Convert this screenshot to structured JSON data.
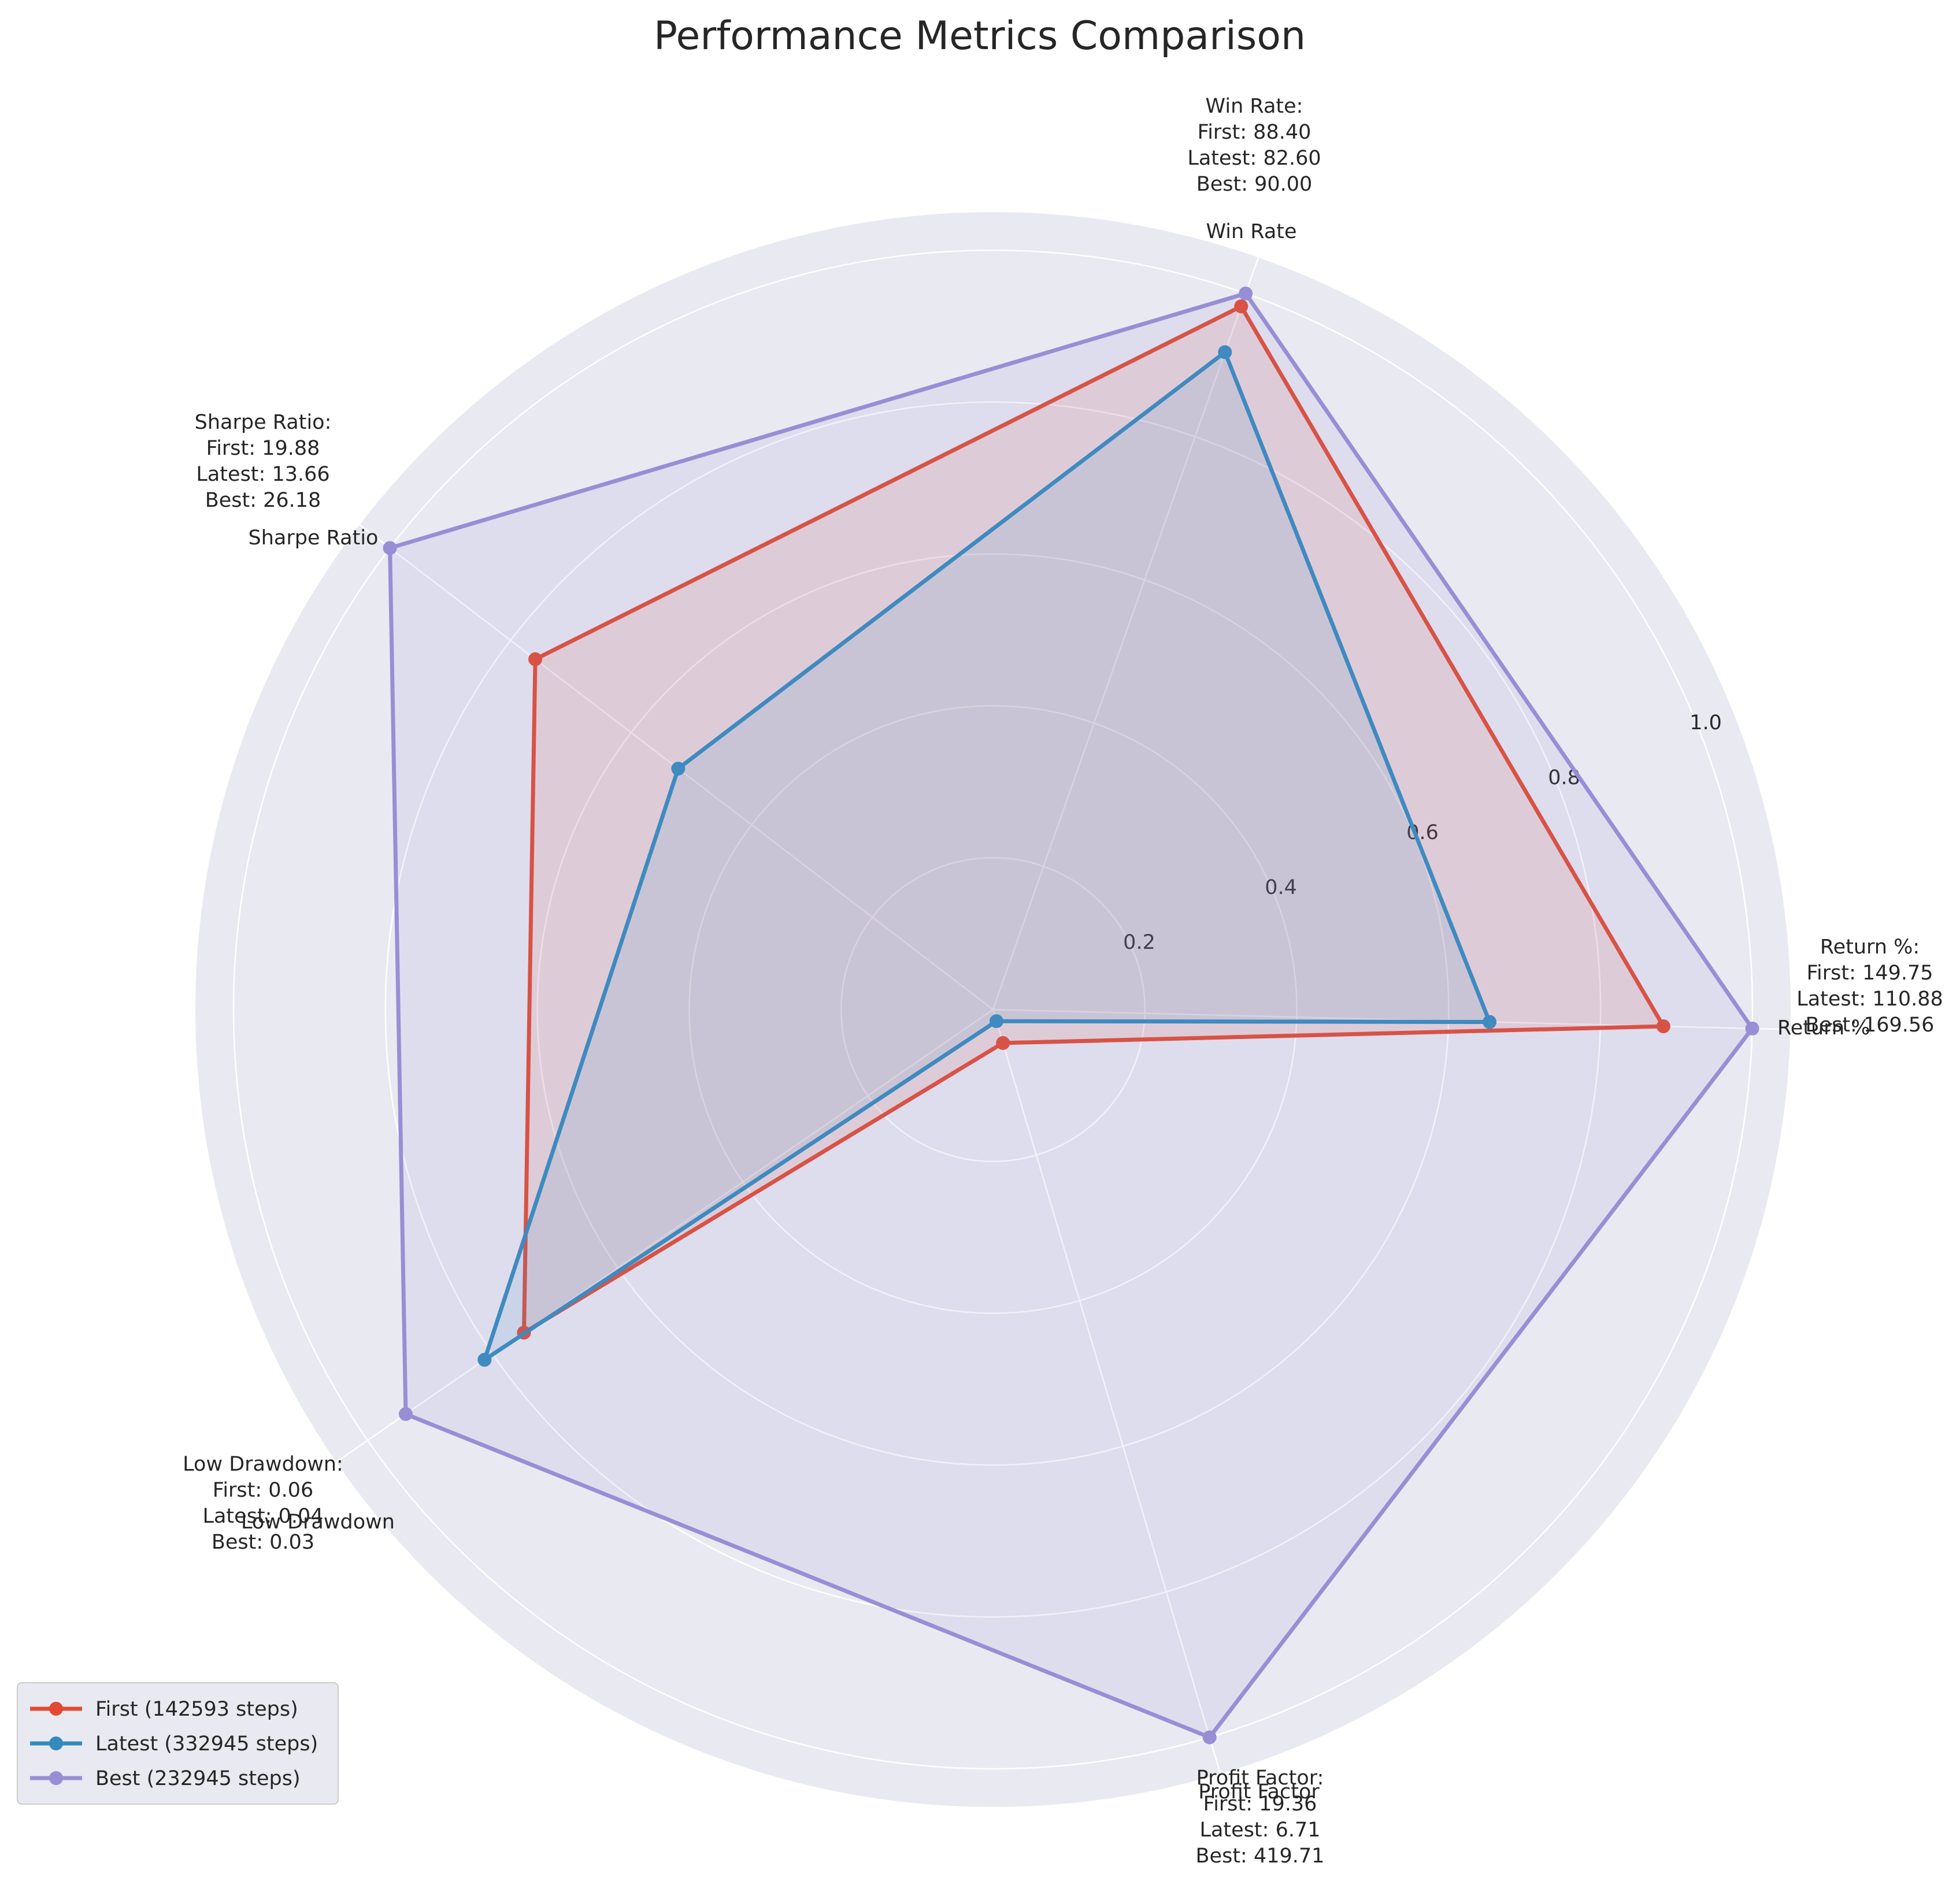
{
  "chart_data": {
    "type": "radar",
    "title": "Performance Metrics Comparison",
    "axes": [
      "Return %",
      "Win Rate",
      "Sharpe Ratio",
      "Low Drawdown",
      "Profit Factor"
    ],
    "rlim": [
      0,
      1.0
    ],
    "rticks": [
      "0.2",
      "0.4",
      "0.6",
      "0.8",
      "1.0"
    ],
    "grid": true,
    "legend_position": "lower-left",
    "series": [
      {
        "name": "First (142593 steps)",
        "color": "#E24A33",
        "values": [
          0.883,
          0.982,
          0.759,
          0.75,
          0.046
        ]
      },
      {
        "name": "Latest (332945 steps)",
        "color": "#348ABD",
        "values": [
          0.654,
          0.918,
          0.522,
          0.813,
          0.016
        ]
      },
      {
        "name": "Best (232945 steps)",
        "color": "#988ED5",
        "values": [
          1.0,
          1.0,
          1.0,
          0.939,
          1.0
        ]
      }
    ],
    "annotations": [
      {
        "axis": "Return %",
        "lines": [
          "Return %:",
          "First: 149.75",
          "Latest: 110.88",
          "Best: 169.56"
        ]
      },
      {
        "axis": "Win Rate",
        "lines": [
          "Win Rate:",
          "First: 88.40",
          "Latest: 82.60",
          "Best: 90.00"
        ]
      },
      {
        "axis": "Sharpe Ratio",
        "lines": [
          "Sharpe Ratio:",
          "First: 19.88",
          "Latest: 13.66",
          "Best: 26.18"
        ]
      },
      {
        "axis": "Low Drawdown",
        "lines": [
          "Low Drawdown:",
          "First: 0.06",
          "Latest: 0.04",
          "Best: 0.03"
        ]
      },
      {
        "axis": "Profit Factor",
        "lines": [
          "Profit Factor:",
          "First: 19.36",
          "Latest: 6.71",
          "Best: 419.71"
        ]
      }
    ]
  }
}
